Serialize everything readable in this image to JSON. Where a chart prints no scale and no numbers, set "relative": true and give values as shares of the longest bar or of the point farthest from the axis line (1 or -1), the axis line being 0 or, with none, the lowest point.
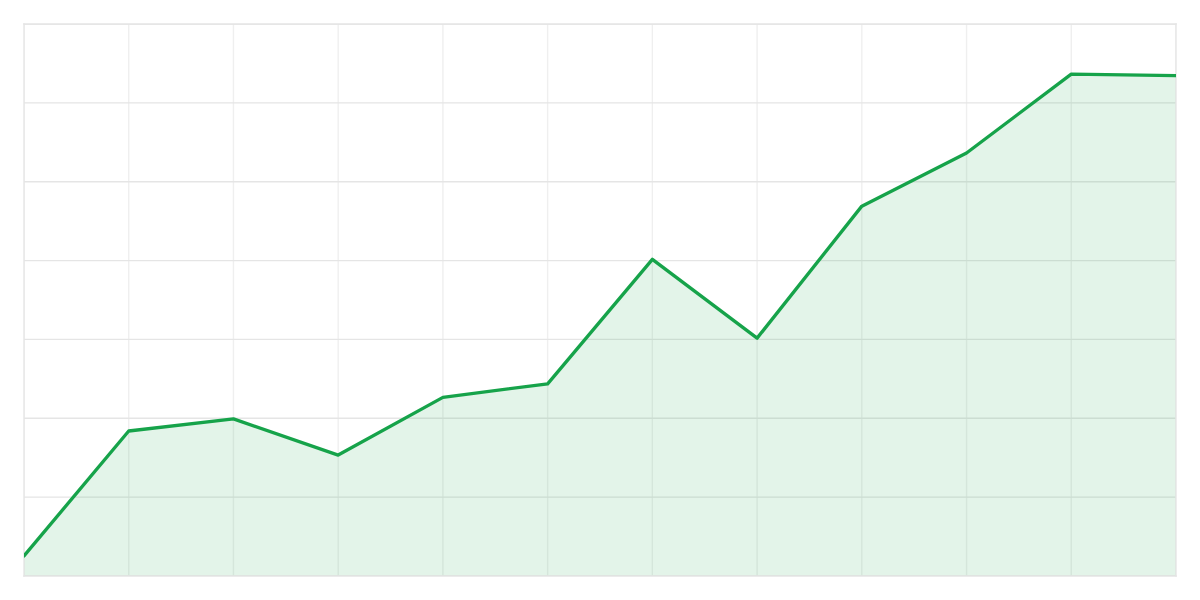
{
  "chart_data": {
    "type": "area",
    "relative": true,
    "categories": [
      null,
      null,
      null,
      null,
      null,
      null,
      null,
      null,
      null,
      null,
      null,
      null
    ],
    "series": [
      {
        "color": "#16a34a",
        "values": [
          0.04,
          0.289,
          0.313,
          0.241,
          0.356,
          0.383,
          0.631,
          0.474,
          0.737,
          0.843,
          1.0,
          0.997
        ]
      }
    ],
    "grid": true,
    "tick_labels": false
  }
}
